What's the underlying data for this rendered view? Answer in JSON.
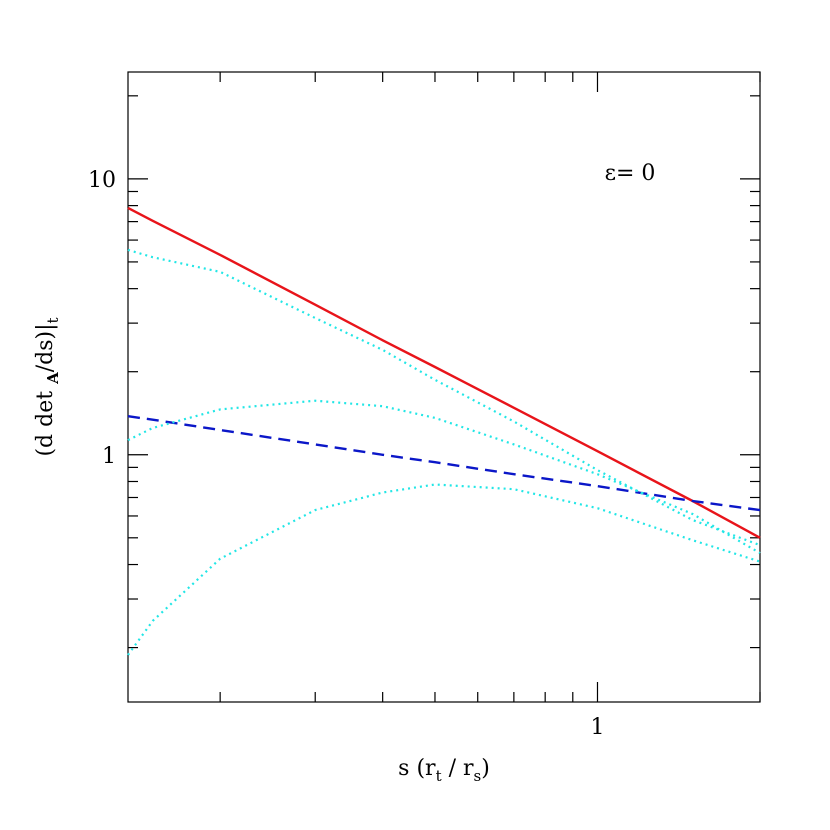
{
  "chart_data": {
    "type": "line",
    "annotation": "ε= 0",
    "xlabel_parts": [
      "s (r",
      "t",
      " / r",
      "s",
      ")"
    ],
    "ylabel_parts": [
      "(d det ",
      "A",
      "/ds)|",
      "t"
    ],
    "xlog": true,
    "ylog": true,
    "xlim": [
      0.135,
      2
    ],
    "ylim": [
      0.127,
      24.4
    ],
    "xticks": [
      1
    ],
    "yticks": [
      1,
      10
    ],
    "xminor": [
      0.2,
      0.3,
      0.4,
      0.5,
      0.6,
      0.7,
      0.8,
      0.9,
      2
    ],
    "yminor": [
      0.2,
      0.3,
      0.4,
      0.5,
      0.6,
      0.7,
      0.8,
      0.9,
      2,
      3,
      4,
      5,
      6,
      7,
      8,
      9,
      20
    ],
    "x": [
      0.135,
      0.15,
      0.2,
      0.3,
      0.4,
      0.5,
      0.7,
      1,
      1.5,
      2
    ],
    "series": [
      {
        "color": "#e8141a",
        "style": "solid",
        "values": [
          7.85,
          7.05,
          5.3,
          3.5,
          2.6,
          2.08,
          1.48,
          1.03,
          0.68,
          0.5
        ]
      },
      {
        "color": "#0b17c8",
        "style": "dashed",
        "values": [
          1.38,
          1.34,
          1.23,
          1.09,
          1.0,
          0.94,
          0.85,
          0.77,
          0.68,
          0.63
        ]
      },
      {
        "color": "#22e6e6",
        "style": "dotted",
        "values": [
          5.53,
          5.2,
          4.6,
          3.13,
          2.4,
          1.87,
          1.32,
          0.88,
          0.58,
          0.47
        ]
      },
      {
        "color": "#22e6e6",
        "style": "dotted",
        "values": [
          1.13,
          1.25,
          1.46,
          1.57,
          1.5,
          1.36,
          1.09,
          0.85,
          0.61,
          0.44
        ]
      },
      {
        "color": "#22e6e6",
        "style": "dotted",
        "values": [
          0.188,
          0.25,
          0.42,
          0.63,
          0.73,
          0.78,
          0.75,
          0.64,
          0.49,
          0.41
        ]
      }
    ]
  }
}
